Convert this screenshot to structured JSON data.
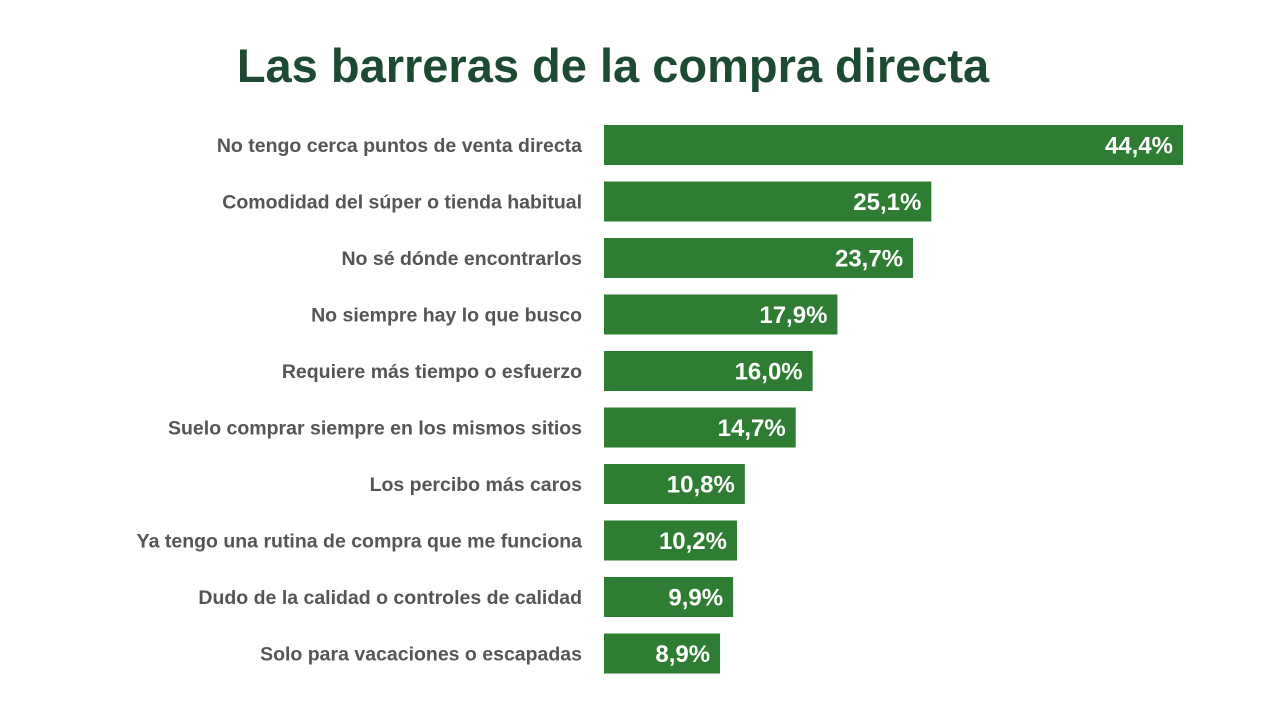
{
  "chart_data": {
    "type": "bar",
    "orientation": "horizontal",
    "title": "Las barreras de la compra directa",
    "xlabel": "",
    "ylabel": "",
    "xlim": [
      0,
      44.4
    ],
    "grid": false,
    "bar_color": "#2e7d32",
    "categories": [
      "No tengo cerca puntos de venta directa",
      "Comodidad del súper o tienda habitual",
      "No sé dónde encontrarlos",
      "No siempre hay lo que busco",
      "Requiere más tiempo o esfuerzo",
      "Suelo comprar siempre en los mismos sitios",
      "Los percibo más caros",
      "Ya tengo una rutina de compra que me funciona",
      "Dudo de la calidad o controles de calidad",
      "Solo para vacaciones o escapadas"
    ],
    "values": [
      44.4,
      25.1,
      23.7,
      17.9,
      16.0,
      14.7,
      10.8,
      10.2,
      9.9,
      8.9
    ],
    "value_labels": [
      "44,4%",
      "25,1%",
      "23,7%",
      "17,9%",
      "16,0%",
      "14,7%",
      "10,8%",
      "10,2%",
      "9,9%",
      "8,9%"
    ]
  }
}
